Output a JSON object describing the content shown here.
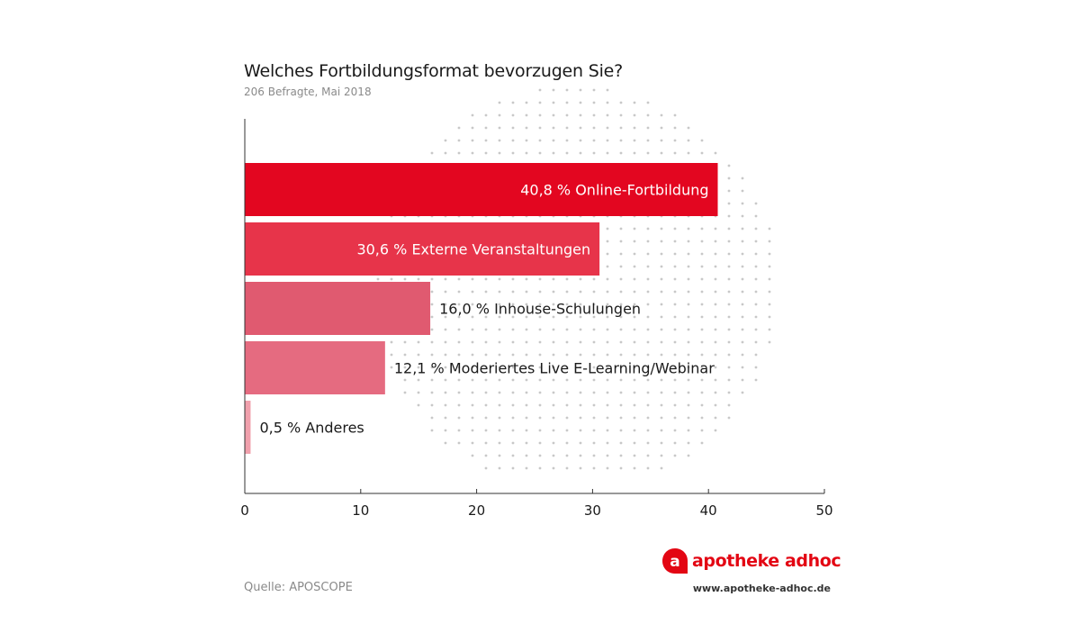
{
  "title": "Welches Fortbildungsformat bevorzugen Sie?",
  "subtitle": "206 Befragte, Mai 2018",
  "source": "Quelle: APOSCOPE",
  "brand": {
    "name": "apotheke adhoc",
    "url": "www.apotheke-adhoc.de",
    "color": "#e30613",
    "icon": "apotheke-adhoc-logo-icon"
  },
  "chart_data": {
    "type": "bar",
    "orientation": "horizontal",
    "title": "Welches Fortbildungsformat bevorzugen Sie?",
    "subtitle": "206 Befragte, Mai 2018",
    "categories": [
      "Online-Fortbildung",
      "Externe Veranstaltungen",
      "Inhouse-Schulungen",
      "Moderiertes Live E-Learning/Webinar",
      "Anderes"
    ],
    "values": [
      40.8,
      30.6,
      16.0,
      12.1,
      0.5
    ],
    "labels": [
      "40,8 % Online-Fortbildung",
      "30,6 % Externe Veranstaltungen",
      "16,0 % Inhouse-Schulungen",
      "12,1 % Moderiertes Live E-Learning/Webinar",
      "0,5 % Anderes"
    ],
    "colors": [
      "#e30620",
      "#e7344a",
      "#e05a70",
      "#e56b80",
      "#f0a0ac"
    ],
    "label_inside": [
      true,
      true,
      false,
      false,
      false
    ],
    "xlim": [
      0,
      50
    ],
    "xticks": [
      0,
      10,
      20,
      30,
      40,
      50
    ],
    "xlabel": "",
    "ylabel": "",
    "grid": false
  }
}
